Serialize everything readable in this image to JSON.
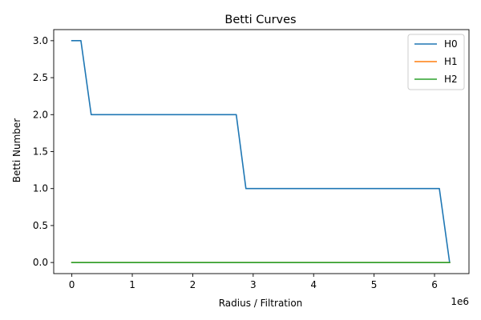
{
  "chart_data": {
    "type": "line",
    "title": "Betti Curves",
    "xlabel": "Radius / Filtration",
    "ylabel": "Betti Number",
    "x_offset_text": "1e6",
    "xlim": [
      -300000,
      6570000
    ],
    "ylim": [
      -0.15,
      3.15
    ],
    "xticks": [
      0,
      1,
      2,
      3,
      4,
      5,
      6
    ],
    "xtick_labels": [
      "0",
      "1",
      "2",
      "3",
      "4",
      "5",
      "6"
    ],
    "yticks": [
      0.0,
      0.5,
      1.0,
      1.5,
      2.0,
      2.5,
      3.0
    ],
    "ytick_labels": [
      "0.0",
      "0.5",
      "1.0",
      "1.5",
      "2.0",
      "2.5",
      "3.0"
    ],
    "grid": false,
    "legend_position": "top-right",
    "series": [
      {
        "name": "H0",
        "color": "#1f77b4",
        "x": [
          0,
          150000,
          320000,
          2720000,
          2880000,
          6080000,
          6250000
        ],
        "y": [
          3,
          3,
          2,
          2,
          1,
          1,
          0
        ]
      },
      {
        "name": "H1",
        "color": "#ff7f0e",
        "x": [
          0,
          6250000
        ],
        "y": [
          0,
          0
        ]
      },
      {
        "name": "H2",
        "color": "#2ca02c",
        "x": [
          0,
          6250000
        ],
        "y": [
          0,
          0
        ]
      }
    ]
  }
}
